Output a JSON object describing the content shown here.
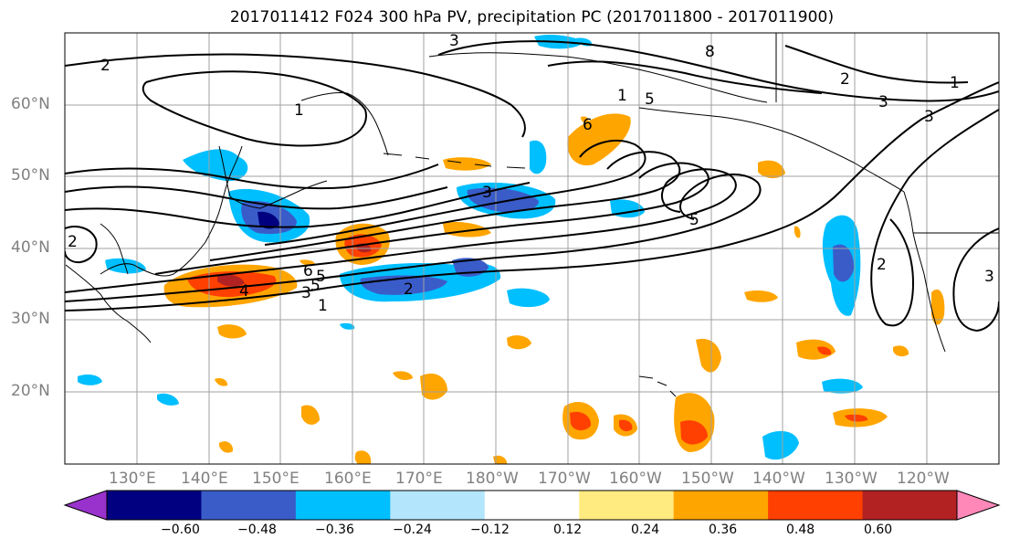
{
  "title": "2017011412 F024 300 hPa PV, precipitation PC (2017011800 - 2017011900)",
  "map": {
    "lat_labels": [
      "60°N",
      "50°N",
      "40°N",
      "30°N",
      "20°N"
    ],
    "lon_labels": [
      "130°E",
      "140°E",
      "150°E",
      "160°E",
      "170°E",
      "180°W",
      "170°W",
      "160°W",
      "150°W",
      "140°W",
      "130°W",
      "120°W"
    ],
    "pv_contour_labels": [
      "3",
      "8",
      "2",
      "1",
      "3",
      "1",
      "5",
      "5",
      "6",
      "1",
      "2",
      "3",
      "3",
      "2",
      "5",
      "6",
      "5",
      "4",
      "3",
      "1",
      "2",
      "2",
      "3"
    ],
    "shading_colors": {
      "strong_positive": "#b22222",
      "positive": "#ff4000",
      "moderate_positive": "#ffa500",
      "weak_positive": "#ffe680",
      "weak_negative": "#b3e5fc",
      "moderate_negative": "#00bfff",
      "negative": "#3a5cc9",
      "strong_negative": "#000080"
    }
  },
  "colorbar": {
    "ticks": [
      "−0.60",
      "−0.48",
      "−0.36",
      "−0.24",
      "−0.12",
      "0.12",
      "0.24",
      "0.36",
      "0.48",
      "0.60"
    ],
    "colors": [
      "#9932cc",
      "#000080",
      "#3a5cc9",
      "#00bfff",
      "#b3e5fc",
      "#ffffff",
      "#ffeb80",
      "#ffa500",
      "#ff4000",
      "#b22222",
      "#ff88b8"
    ]
  }
}
